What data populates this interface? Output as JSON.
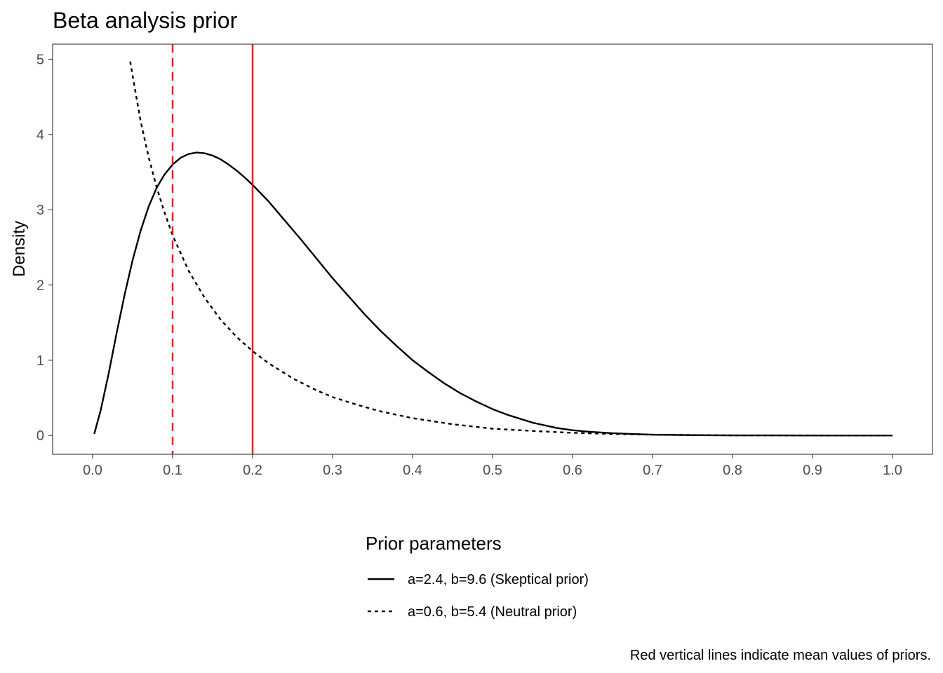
{
  "chart_data": {
    "type": "line",
    "title": "Beta analysis prior",
    "xlabel": "",
    "ylabel": "Density",
    "xlim": [
      -0.05,
      1.05
    ],
    "ylim": [
      -0.25,
      5.2
    ],
    "x_ticks": [
      0.0,
      0.1,
      0.2,
      0.3,
      0.4,
      0.5,
      0.6,
      0.7,
      0.8,
      0.9,
      1.0
    ],
    "x_tick_labels": [
      "0.0",
      "0.1",
      "0.2",
      "0.3",
      "0.4",
      "0.5",
      "0.6",
      "0.7",
      "0.8",
      "0.9",
      "1.0"
    ],
    "y_ticks": [
      0,
      1,
      2,
      3,
      4,
      5
    ],
    "y_tick_labels": [
      "0",
      "1",
      "2",
      "3",
      "4",
      "5"
    ],
    "grid": false,
    "series": [
      {
        "name": "a=2.4, b=9.6 (Skeptical prior)",
        "line_style": "solid",
        "color": "#000000",
        "x": [
          0.002,
          0.01,
          0.02,
          0.03,
          0.04,
          0.05,
          0.06,
          0.07,
          0.08,
          0.09,
          0.1,
          0.11,
          0.12,
          0.13,
          0.14,
          0.15,
          0.16,
          0.17,
          0.18,
          0.19,
          0.2,
          0.22,
          0.24,
          0.26,
          0.28,
          0.3,
          0.32,
          0.34,
          0.36,
          0.38,
          0.4,
          0.42,
          0.44,
          0.46,
          0.48,
          0.5,
          0.52,
          0.55,
          0.58,
          0.6,
          0.62,
          0.65,
          0.7,
          0.75,
          0.8,
          0.85,
          0.9,
          0.95,
          1.0
        ],
        "y": [
          0.02,
          0.33,
          0.82,
          1.36,
          1.87,
          2.33,
          2.72,
          3.04,
          3.29,
          3.47,
          3.6,
          3.69,
          3.74,
          3.76,
          3.75,
          3.72,
          3.67,
          3.6,
          3.52,
          3.43,
          3.33,
          3.11,
          2.86,
          2.61,
          2.35,
          2.09,
          1.85,
          1.61,
          1.39,
          1.19,
          1.0,
          0.84,
          0.69,
          0.56,
          0.45,
          0.35,
          0.27,
          0.17,
          0.1,
          0.07,
          0.05,
          0.03,
          0.01,
          0.004,
          0.001,
          0.0002,
          0.0,
          0.0,
          0.0
        ]
      },
      {
        "name": "a=0.6, b=5.4 (Neutral prior)",
        "line_style": "dotted",
        "color": "#000000",
        "x": [
          0.047,
          0.05,
          0.06,
          0.07,
          0.08,
          0.09,
          0.1,
          0.12,
          0.14,
          0.16,
          0.18,
          0.2,
          0.22,
          0.25,
          0.28,
          0.3,
          0.33,
          0.36,
          0.4,
          0.45,
          0.5,
          0.55,
          0.6,
          0.65,
          0.7,
          0.75,
          0.8,
          0.85,
          0.9,
          0.95,
          1.0
        ],
        "y": [
          4.97,
          4.78,
          4.18,
          3.7,
          3.3,
          2.96,
          2.66,
          2.19,
          1.83,
          1.54,
          1.31,
          1.12,
          0.96,
          0.76,
          0.6,
          0.51,
          0.41,
          0.32,
          0.23,
          0.15,
          0.09,
          0.06,
          0.035,
          0.02,
          0.011,
          0.005,
          0.002,
          0.0007,
          0.0002,
          0.0,
          0.0
        ]
      }
    ],
    "mean_lines": [
      {
        "x": 0.2,
        "color": "#ff0000",
        "line_style": "solid"
      },
      {
        "x": 0.1,
        "color": "#ff0000",
        "line_style": "dashed"
      }
    ],
    "legend": {
      "title": "Prior parameters",
      "placement": "bottom"
    },
    "caption": "Red vertical lines indicate mean values of priors."
  }
}
